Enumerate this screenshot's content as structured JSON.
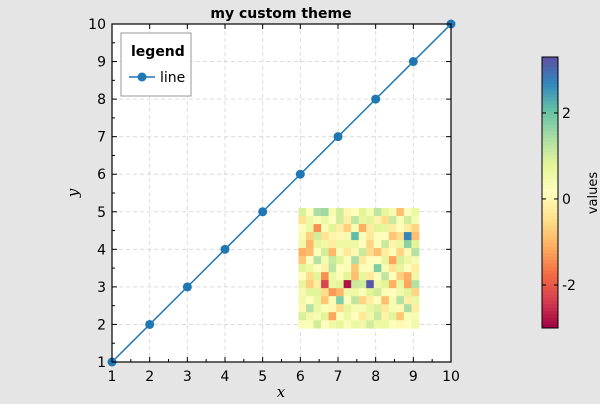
{
  "chart_data": {
    "type": "line",
    "title": "my custom theme",
    "xlabel": "x",
    "ylabel": "y",
    "xlim": [
      1,
      10
    ],
    "ylim": [
      1,
      10
    ],
    "xticks": [
      "1",
      "2",
      "3",
      "4",
      "5",
      "6",
      "7",
      "8",
      "9",
      "10"
    ],
    "yticks": [
      "1",
      "2",
      "3",
      "4",
      "5",
      "6",
      "7",
      "8",
      "9",
      "10"
    ],
    "grid": true,
    "legend": {
      "title": "legend",
      "placement": "top-left"
    },
    "series": [
      {
        "name": "line",
        "color": "#1f77b4",
        "x": [
          1,
          2,
          3,
          4,
          5,
          6,
          7,
          8,
          9,
          10
        ],
        "y": [
          1,
          2,
          3,
          4,
          5,
          6,
          7,
          8,
          9,
          10
        ]
      }
    ],
    "heatmap": {
      "type": "heatmap",
      "colormap": "Spectral",
      "extent": {
        "x": [
          5.95,
          9.15
        ],
        "y": [
          1.9,
          5.1
        ]
      },
      "vmin": -3,
      "vmax": 3.3,
      "values": [
        [
          0.9,
          0.2,
          1.4,
          1.5,
          0.4,
          1.0,
          0.0,
          0.2,
          0.8,
          0.4,
          1.2,
          0.7,
          0.4,
          -0.9,
          0.1,
          0.6
        ],
        [
          -0.4,
          0.6,
          0.3,
          0.6,
          0.2,
          1.0,
          -0.2,
          1.2,
          0.7,
          0.8,
          -0.1,
          -0.5,
          1.1,
          0.3,
          1.0,
          0.4
        ],
        [
          0.1,
          0.6,
          -1.4,
          0.3,
          0.8,
          -0.2,
          -0.7,
          0.3,
          -1.1,
          -0.2,
          0.8,
          0.7,
          -0.2,
          0.2,
          -0.2,
          -0.6
        ],
        [
          0.4,
          -0.7,
          1.0,
          -0.4,
          -0.1,
          0.0,
          0.4,
          2.1,
          0.3,
          -0.3,
          0.1,
          0.1,
          -0.8,
          -0.5,
          2.7,
          -0.9
        ],
        [
          0.5,
          -1.0,
          0.7,
          0.5,
          -0.2,
          0.6,
          0.6,
          0.6,
          0.2,
          -0.6,
          0.2,
          1.1,
          -0.1,
          0.6,
          1.7,
          0.8
        ],
        [
          -1.1,
          -0.9,
          0.2,
          1.0,
          -1.0,
          0.3,
          -0.3,
          0.0,
          1.1,
          -0.5,
          -0.9,
          -0.2,
          0.3,
          -0.6,
          0.0,
          1.3
        ],
        [
          -0.8,
          0.2,
          1.3,
          0.4,
          1.1,
          0.8,
          0.2,
          1.4,
          -0.3,
          0.1,
          0.2,
          0.7,
          -1.2,
          0.9,
          0.6,
          0.4
        ],
        [
          0.8,
          0.6,
          0.2,
          -0.1,
          1.2,
          0.1,
          0.3,
          -0.8,
          0.3,
          0.1,
          1.8,
          0.4,
          -0.4,
          0.7,
          0.2,
          -0.2
        ],
        [
          0.2,
          -0.5,
          0.8,
          -1.4,
          0.6,
          0.3,
          0.8,
          -0.9,
          0.7,
          -0.3,
          0.2,
          1.2,
          0.2,
          -0.7,
          -1.1,
          0.5
        ],
        [
          0.7,
          -0.7,
          -0.2,
          -2.3,
          0.6,
          0.8,
          -2.8,
          1.1,
          1.0,
          3.2,
          0.5,
          0.8,
          -1.1,
          0.6,
          -1.2,
          1.3
        ],
        [
          0.4,
          0.8,
          0.8,
          -0.5,
          -1.3,
          -1.0,
          0.5,
          0.6,
          0.3,
          0.8,
          1.0,
          0.3,
          0.1,
          0.5,
          0.8,
          -0.6
        ],
        [
          0.5,
          0.2,
          0.7,
          -0.8,
          0.3,
          1.8,
          0.2,
          1.2,
          -0.6,
          -0.2,
          0.2,
          -0.9,
          0.4,
          1.3,
          -0.2,
          0.6
        ],
        [
          0.0,
          1.3,
          0.6,
          0.3,
          0.0,
          -0.5,
          0.7,
          0.4,
          0.4,
          0.7,
          0.9,
          -0.3,
          0.4,
          0.0,
          1.4,
          -0.2
        ],
        [
          0.9,
          0.5,
          0.4,
          0.8,
          -1.2,
          0.2,
          0.6,
          0.2,
          -0.3,
          0.5,
          1.1,
          -0.1,
          0.8,
          -0.8,
          0.3,
          0.4
        ],
        [
          0.3,
          0.3,
          1.0,
          0.2,
          0.5,
          0.7,
          0.3,
          0.6,
          0.5,
          1.0,
          0.6,
          0.6,
          0.2,
          0.0,
          0.1,
          0.5
        ]
      ]
    },
    "colorbar": {
      "label": "values",
      "ticks": [
        {
          "value": 2,
          "label": "2"
        },
        {
          "value": 0,
          "label": "0"
        },
        {
          "value": -2,
          "label": "-2"
        }
      ]
    }
  }
}
